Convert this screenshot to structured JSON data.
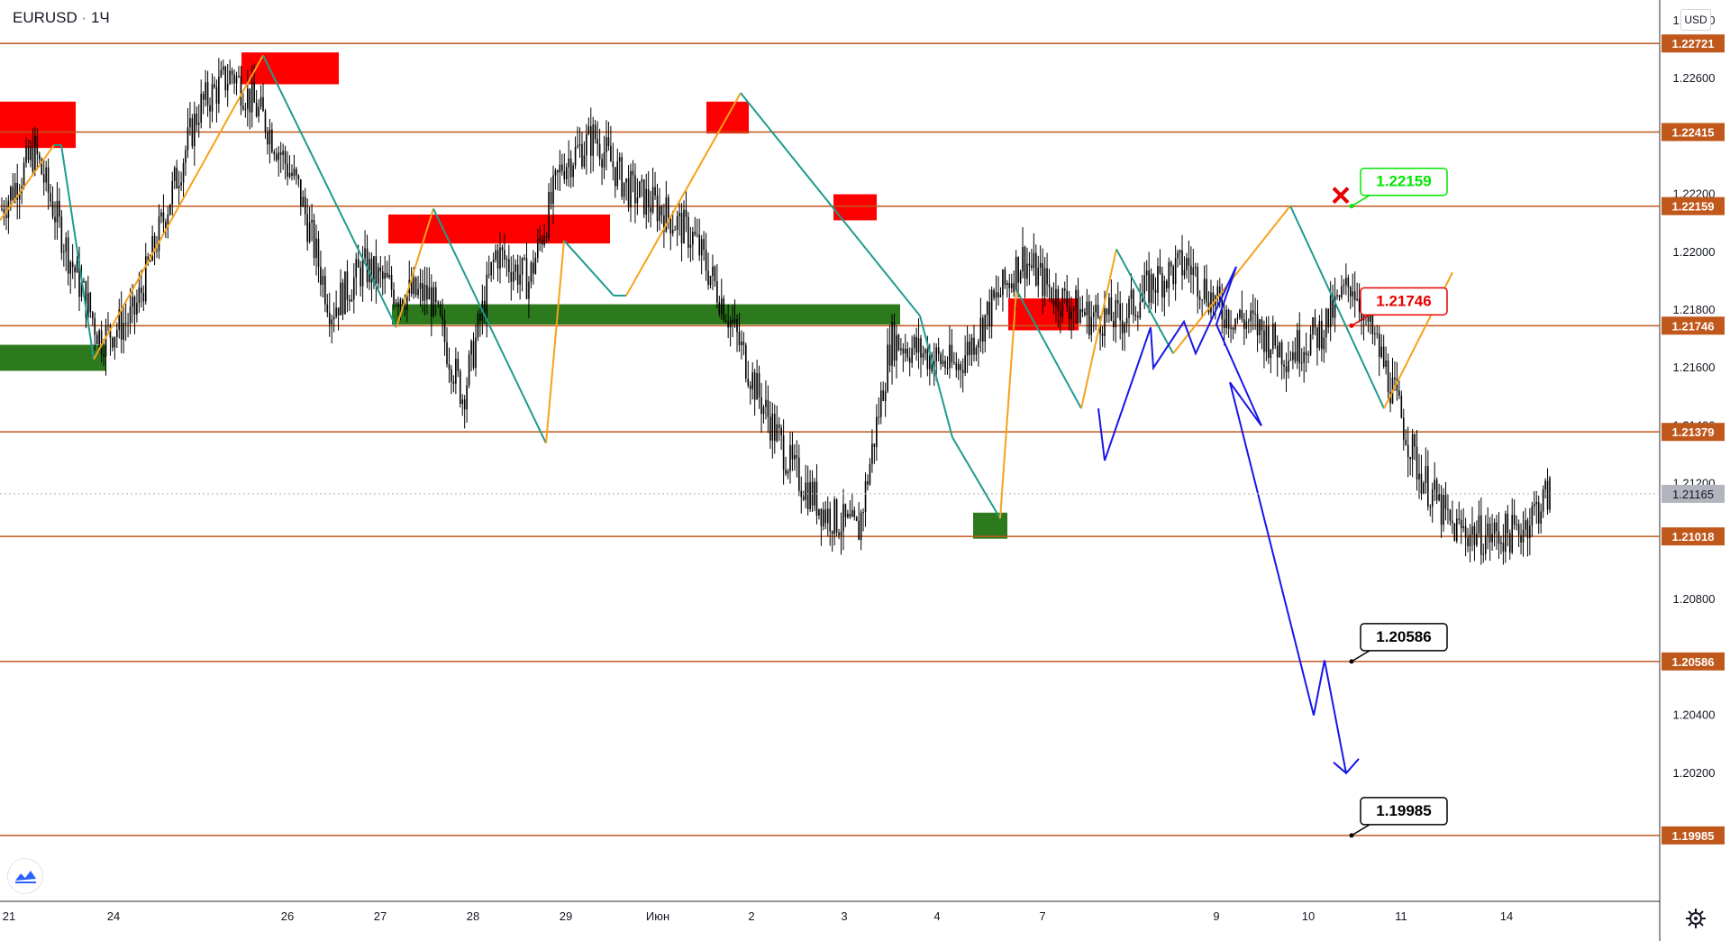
{
  "header": {
    "symbol": "EURUSD",
    "separator": "·",
    "timeframe": "1Ч"
  },
  "currency_button": "USD",
  "icons": {
    "logo": "tradingview-logo-icon",
    "settings": "gear-icon"
  },
  "colors": {
    "level_line": "#c0571b",
    "bull_wave": "#f5a21b",
    "bear_wave": "#1f9b8e",
    "projection": "#1717e6",
    "supply_zone": "#ff0000",
    "demand_zone": "#2d7a1e",
    "candle": "#000000",
    "label_green": "#00e600",
    "label_red": "#e60000",
    "price_marker": "#b2b5be"
  },
  "chart_data": {
    "type": "candlestick",
    "instrument": "EURUSD",
    "timeframe": "1Ч",
    "ylim": [
      1.1986,
      1.2284
    ],
    "y_tick_labels": [
      "1.22800",
      "1.22600",
      "1.22200",
      "1.22000",
      "1.21800",
      "1.21600",
      "1.21400",
      "1.21200",
      "1.20800",
      "1.20400",
      "1.20200"
    ],
    "x_tick_labels": [
      "21",
      "24",
      "26",
      "27",
      "28",
      "29",
      "Июн",
      "2",
      "3",
      "4",
      "7",
      "9",
      "10",
      "11",
      "14"
    ],
    "current_price": "1.21165",
    "horizontal_levels": [
      1.22721,
      1.22415,
      1.22159,
      1.21746,
      1.21379,
      1.21018,
      1.20586,
      1.19985
    ],
    "level_labels": [
      "1.22721",
      "1.22415",
      "1.22159",
      "1.21746",
      "1.21379",
      "1.21018",
      "1.20586",
      "1.19985"
    ],
    "annotations": [
      {
        "text": "1.22159",
        "price": 1.22159,
        "style": "green",
        "cancelled": true
      },
      {
        "text": "1.21746",
        "price": 1.21746,
        "style": "red"
      },
      {
        "text": "1.20586",
        "price": 1.20586,
        "style": "black"
      },
      {
        "text": "1.19985",
        "price": 1.19985,
        "style": "black"
      }
    ],
    "supply_zones": [
      {
        "from": "21",
        "to": "23",
        "high": 1.2252,
        "low": 1.2236
      },
      {
        "from": "25",
        "to": "26",
        "high": 1.2269,
        "low": 1.2258
      },
      {
        "from": "27",
        "to": "29",
        "high": 1.2213,
        "low": 1.2203
      },
      {
        "from": "1",
        "to": "1",
        "high": 1.2252,
        "low": 1.2241
      },
      {
        "from": "3",
        "to": "3",
        "high": 1.222,
        "low": 1.2211
      },
      {
        "from": "4",
        "to": "7",
        "high": 1.2184,
        "low": 1.2173
      }
    ],
    "demand_zones": [
      {
        "from": "21",
        "to": "23",
        "high": 1.2168,
        "low": 1.2159
      },
      {
        "from": "27",
        "to": "3",
        "high": 1.2182,
        "low": 1.2175
      },
      {
        "from": "4",
        "to": "4",
        "high": 1.211,
        "low": 1.2101
      }
    ],
    "series": [
      {
        "kind": "price",
        "points": [
          1.2215,
          1.2235,
          1.22,
          1.217,
          1.2178,
          1.2215,
          1.225,
          1.2262,
          1.2245,
          1.2222,
          1.218,
          1.2195,
          1.2186,
          1.2185,
          1.215,
          1.22,
          1.219,
          1.223,
          1.224,
          1.2222,
          1.2215,
          1.2205,
          1.218,
          1.215,
          1.2125,
          1.211,
          1.2103,
          1.217,
          1.2165,
          1.216,
          1.218,
          1.2198,
          1.2185,
          1.2178,
          1.2177,
          1.219,
          1.2196,
          1.218,
          1.2175,
          1.2165,
          1.2172,
          1.219,
          1.216,
          1.2125,
          1.2105,
          1.2102,
          1.2103,
          1.2117
        ]
      },
      {
        "kind": "projection",
        "points": [
          1.2146,
          1.2128,
          1.2174,
          1.216,
          1.2176,
          1.2165,
          1.2195,
          1.2175,
          1.214,
          1.2155,
          1.204,
          1.2059,
          1.202
        ]
      }
    ]
  }
}
